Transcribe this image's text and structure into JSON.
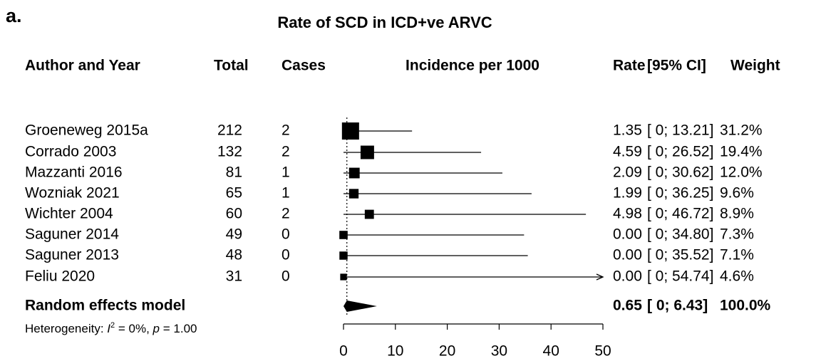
{
  "chart_data": {
    "type": "forest",
    "panel": "a.",
    "title": "Rate of SCD in ICD+ve ARVC",
    "headers": [
      "Author and Year",
      "Total",
      "Cases",
      "Incidence per 1000",
      "Rate",
      "[95% CI]",
      "Weight"
    ],
    "rows": [
      {
        "label": "Groeneweg 2015a",
        "total": 212,
        "cases": 2,
        "rate": 1.35,
        "ci": [
          0,
          13.21
        ],
        "ci_label": "[ 0; 13.21]",
        "weight": 31.2,
        "weight_label": "31.2%"
      },
      {
        "label": "Corrado 2003",
        "total": 132,
        "cases": 2,
        "rate": 4.59,
        "ci": [
          0,
          26.52
        ],
        "ci_label": "[ 0; 26.52]",
        "weight": 19.4,
        "weight_label": "19.4%"
      },
      {
        "label": "Mazzanti 2016",
        "total": 81,
        "cases": 1,
        "rate": 2.09,
        "ci": [
          0,
          30.62
        ],
        "ci_label": "[ 0; 30.62]",
        "weight": 12.0,
        "weight_label": "12.0%"
      },
      {
        "label": "Wozniak 2021",
        "total": 65,
        "cases": 1,
        "rate": 1.99,
        "ci": [
          0,
          36.25
        ],
        "ci_label": "[ 0; 36.25]",
        "weight": 9.6,
        "weight_label": "9.6%"
      },
      {
        "label": "Wichter 2004",
        "total": 60,
        "cases": 2,
        "rate": 4.98,
        "ci": [
          0,
          46.72
        ],
        "ci_label": "[ 0; 46.72]",
        "weight": 8.9,
        "weight_label": "8.9%"
      },
      {
        "label": "Saguner 2014",
        "total": 49,
        "cases": 0,
        "rate": 0,
        "rate_label": "0.00",
        "ci": [
          0,
          34.8
        ],
        "ci_label": "[ 0; 34.80]",
        "weight": 7.3,
        "weight_label": "7.3%"
      },
      {
        "label": "Saguner 2013",
        "total": 48,
        "cases": 0,
        "rate": 0,
        "rate_label": "0.00",
        "ci": [
          0,
          35.52
        ],
        "ci_label": "[ 0; 35.52]",
        "weight": 7.1,
        "weight_label": "7.1%"
      },
      {
        "label": "Feliu 2020",
        "total": 31,
        "cases": 0,
        "rate": 0,
        "rate_label": "0.00",
        "ci": [
          0,
          54.74
        ],
        "ci_label": "[ 0; 54.74]",
        "weight": 4.6,
        "weight_label": "4.6%"
      }
    ],
    "summary": {
      "label": "Random effects model",
      "rate": 0.65,
      "ci": [
        0,
        6.43
      ],
      "ci_label": "[ 0;  6.43]",
      "weight": 100,
      "weight_label": "100.0%"
    },
    "heterogeneity": [
      "Heterogeneity: ",
      "I",
      "2",
      " = 0%, ",
      "p",
      " = 1.00"
    ],
    "xlim": [
      0,
      50
    ],
    "xticks": [
      0,
      10,
      20,
      30,
      40,
      50
    ],
    "color": "#000000"
  }
}
